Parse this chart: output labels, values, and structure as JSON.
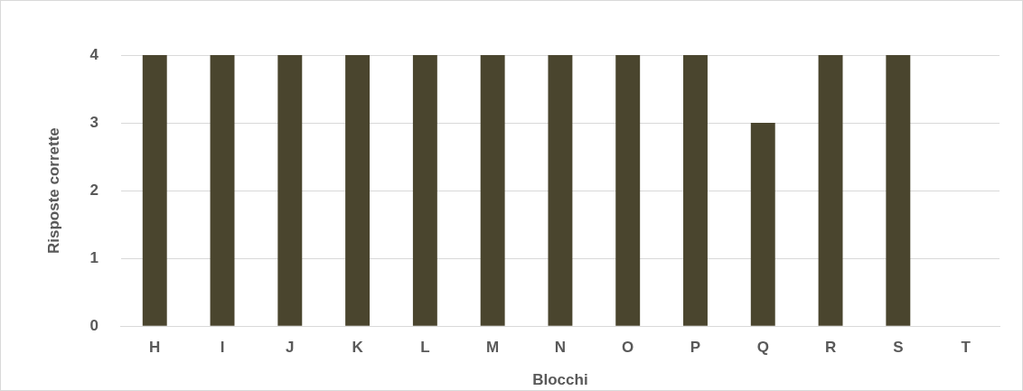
{
  "chart_data": {
    "type": "bar",
    "xlabel": "Blocchi",
    "ylabel": "Risposte corrette",
    "categories": [
      "H",
      "I",
      "J",
      "K",
      "L",
      "M",
      "N",
      "O",
      "P",
      "Q",
      "R",
      "S",
      "T"
    ],
    "values": [
      4,
      4,
      4,
      4,
      4,
      4,
      4,
      4,
      4,
      3,
      4,
      4,
      0
    ],
    "color": "#4a452e",
    "ylim": [
      0,
      4
    ],
    "yticks": [
      0,
      1,
      2,
      3,
      4
    ],
    "grid": "y",
    "legend": false
  }
}
